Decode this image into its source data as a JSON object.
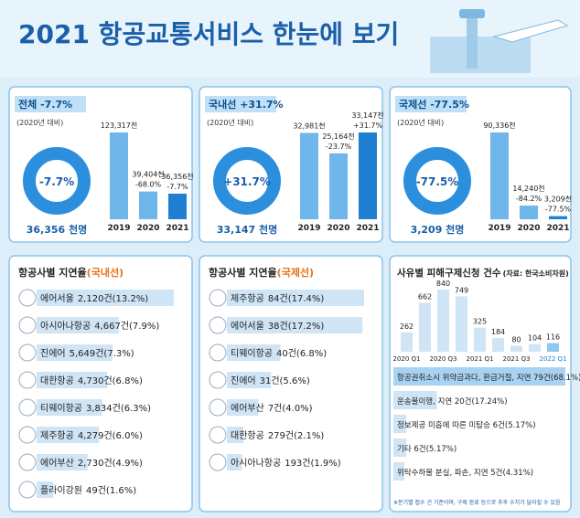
{
  "title": "2021 항공교통서비스 한눈에 보기",
  "chart_data": [
    {
      "type": "bar",
      "title": "전체 -7.7%",
      "subtitle": "(2020년 대비)",
      "center_label": "-7.7%",
      "total": "36,356 천명",
      "categories": [
        "2019",
        "2020",
        "2021"
      ],
      "values": [
        123317,
        39404,
        36356
      ],
      "value_labels": [
        "123,317천",
        "39,404천",
        "36,356천"
      ],
      "changes": [
        null,
        "-68.0%",
        "-7.7%"
      ]
    },
    {
      "type": "bar",
      "title": "국내선 +31.7%",
      "subtitle": "(2020년 대비)",
      "center_label": "+31.7%",
      "total": "33,147 천명",
      "categories": [
        "2019",
        "2020",
        "2021"
      ],
      "values": [
        32981,
        25164,
        33147
      ],
      "value_labels": [
        "32,981천",
        "25,164천",
        "33,147천"
      ],
      "changes": [
        null,
        "-23.7%",
        "+31.7%"
      ]
    },
    {
      "type": "bar",
      "title": "국제선 -77.5%",
      "subtitle": "(2020년 대비)",
      "center_label": "-77.5%",
      "total": "3,209 천명",
      "categories": [
        "2019",
        "2020",
        "2021"
      ],
      "values": [
        90336,
        14240,
        3209
      ],
      "value_labels": [
        "90,336천",
        "14,240천",
        "3,209천"
      ],
      "changes": [
        null,
        "-84.2%",
        "-77.5%"
      ]
    },
    {
      "type": "hbar",
      "title": "항공사별 지연율",
      "title_note": "(국내선)",
      "categories": [
        "에어서울",
        "아시아나항공",
        "진에어",
        "대한항공",
        "티웨이항공",
        "제주항공",
        "에어부산",
        "플라이강원"
      ],
      "values": [
        13.2,
        7.9,
        7.3,
        6.8,
        6.3,
        6.0,
        4.9,
        1.6
      ],
      "value_labels": [
        "2,120건(13.2%)",
        "4,667건(7.9%)",
        "5,649건(7.3%)",
        "4,730건(6.8%)",
        "3,834건(6.3%)",
        "4,279건(6.0%)",
        "2,730건(4.9%)",
        "49건(1.6%)"
      ]
    },
    {
      "type": "hbar",
      "title": "항공사별 지연율",
      "title_note": "(국제선)",
      "categories": [
        "제주항공",
        "에어서울",
        "티웨이항공",
        "진에어",
        "에어부산",
        "대한항공",
        "아시아나항공"
      ],
      "values": [
        17.4,
        17.2,
        6.8,
        5.6,
        4.0,
        2.1,
        1.9
      ],
      "value_labels": [
        "84건(17.4%)",
        "38건(17.2%)",
        "40건(6.8%)",
        "31건(5.6%)",
        "7건(4.0%)",
        "279건(2.1%)",
        "193건(1.9%)"
      ]
    },
    {
      "type": "bar",
      "title": "사유별 피해구제신청 건수",
      "title_note": "(자료: 한국소비자원)",
      "categories": [
        "2020 Q1",
        null,
        "2020 Q3",
        null,
        "2021 Q1",
        null,
        "2021 Q3",
        null,
        "2022 Q1"
      ],
      "values": [
        262,
        662,
        840,
        749,
        325,
        184,
        80,
        104,
        116
      ],
      "reason_labels": [
        "항공권취소시 위약금과다, 환급거절, 지연 79건(68.1%)",
        "운송불이행, 지연 20건(17.24%)",
        "정보제공 미흡에 따른 미탑승 6건(5.17%)",
        "기타 6건(5.17%)",
        "위탁수하물 분실, 파손, 지연 5건(4.31%)"
      ],
      "reason_values": [
        68.1,
        17.24,
        5.17,
        5.17,
        4.31
      ],
      "footnote": "※분기별 접수 건 기준이며, 구제 완료 등으로 추후 수치가 달라질 수 있음"
    }
  ]
}
